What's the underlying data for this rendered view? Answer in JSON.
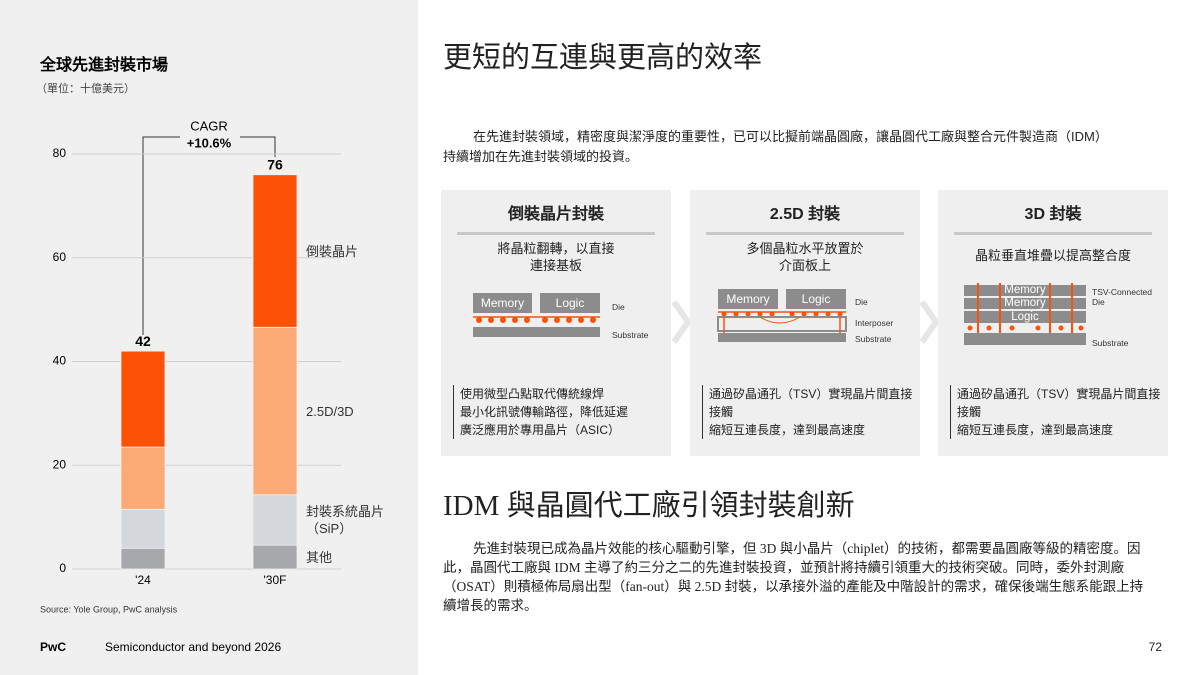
{
  "chart_data": {
    "type": "stacked-bar",
    "title": "全球先進封裝市場",
    "subtitle": "（單位：十億美元）",
    "categories": [
      "'24",
      "'30F"
    ],
    "series": [
      {
        "name": "其他",
        "color": "#a7a8ab",
        "values": [
          4,
          4.6
        ]
      },
      {
        "name": "封裝系統晶片（SiP）",
        "color": "#d4d7db",
        "values": [
          7.5,
          9.7
        ]
      },
      {
        "name": "2.5D/3D",
        "color": "#fdab76",
        "values": [
          12,
          32.3
        ]
      },
      {
        "name": "倒裝晶片",
        "color": "#fd5108",
        "values": [
          18.5,
          29.4
        ]
      }
    ],
    "totals": [
      42,
      76
    ],
    "cagr_label": "CAGR",
    "cagr_value": "+10.6%",
    "ylim": [
      0,
      80
    ],
    "yticks": [
      0,
      20,
      40,
      60,
      80
    ],
    "grid": true,
    "source": "Source: Yole Group, PwC analysis"
  },
  "header": {
    "title": "更短的互連與更高的效率",
    "intro": "在先進封裝領域，精密度與潔淨度的重要性，已可以比擬前端晶圓廠，讓晶圓代工廠與整合元件製造商（IDM）持續增加在先進封裝領域的投資。"
  },
  "cards": [
    {
      "title": "倒裝晶片封裝",
      "subtitle": [
        "將晶粒翻轉，以直接",
        "連接基板"
      ],
      "labels": [
        "Memory",
        "Logic",
        "Die",
        "Substrate"
      ],
      "bullets": [
        "使用微型凸點取代傳統線焊",
        "最小化訊號傳輸路徑，降低延遲",
        "廣泛應用於專用晶片（ASIC）"
      ]
    },
    {
      "title": "2.5D 封裝",
      "subtitle": [
        "多個晶粒水平放置於",
        "介面板上"
      ],
      "labels": [
        "Memory",
        "Logic",
        "Die",
        "Interposer",
        "Substrate"
      ],
      "bullets": [
        "通過矽晶通孔（TSV）實現晶片間直接接觸",
        "縮短互連長度，達到最高速度"
      ]
    },
    {
      "title": "3D 封裝",
      "subtitle": [
        "晶粒垂直堆疊以提高整合度"
      ],
      "labels": [
        "Memory",
        "Memory",
        "Logic",
        "TSV-Connected Die",
        "Substrate"
      ],
      "bullets": [
        "通過矽晶通孔（TSV）實現晶片間直接接觸",
        "縮短互連長度，達到最高速度"
      ]
    }
  ],
  "section": {
    "title": "IDM 與晶圓代工廠引領封裝創新",
    "body": "先進封裝現已成為晶片效能的核心驅動引擎，但 3D 與小晶片（chiplet）的技術，都需要晶圓廠等級的精密度。因此，晶圓代工廠與 IDM 主導了約三分之二的先進封裝投資，並預計將持續引領重大的技術突破。同時，委外封測廠（OSAT）則積極佈局扇出型（fan-out）與 2.5D 封裝，以承接外溢的產能及中階設計的需求，確保後端生態系能跟上持續增長的需求。"
  },
  "footer": {
    "brand": "PwC",
    "publication": "Semiconductor and beyond 2026",
    "page": "72"
  }
}
